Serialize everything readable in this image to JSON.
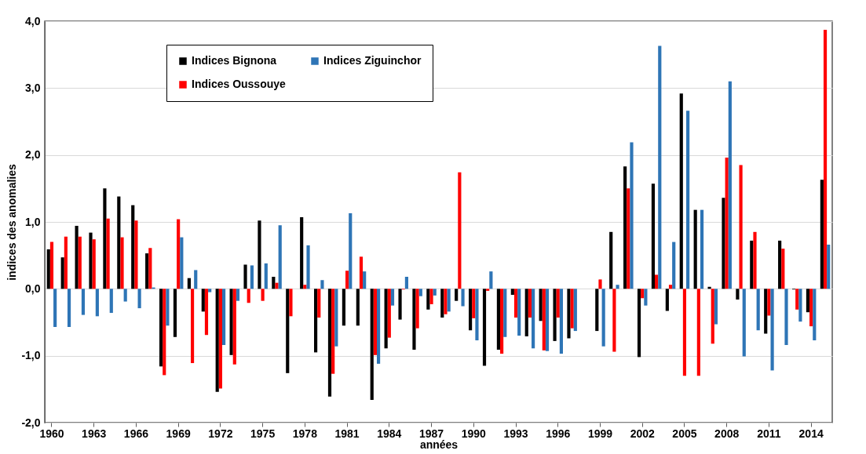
{
  "chart_data": {
    "type": "bar",
    "xlabel": "années",
    "ylabel": "indices des anomalies",
    "categories": [
      "1960",
      null,
      null,
      "1963",
      null,
      null,
      "1966",
      null,
      null,
      "1969",
      null,
      null,
      "1972",
      null,
      null,
      "1975",
      null,
      null,
      "1978",
      null,
      null,
      "1981",
      null,
      null,
      "1984",
      null,
      null,
      "1987",
      null,
      null,
      "1990",
      null,
      null,
      "1993",
      null,
      null,
      "1996",
      null,
      null,
      "1999",
      null,
      null,
      "2002",
      null,
      null,
      "2005",
      null,
      null,
      "2008",
      null,
      null,
      "2011",
      null,
      null,
      "2014",
      null
    ],
    "series": [
      {
        "name": "Indices Bignona",
        "color": "#000000",
        "values": [
          0.59,
          0.47,
          0.94,
          0.84,
          1.5,
          1.38,
          1.25,
          0.53,
          -1.16,
          -0.72,
          0.16,
          -0.34,
          -1.54,
          -0.99,
          0.36,
          1.02,
          0.18,
          -1.26,
          1.07,
          -0.95,
          -1.61,
          -0.55,
          -0.55,
          -1.66,
          -0.89,
          -0.46,
          -0.91,
          -0.31,
          -0.43,
          -0.18,
          -0.62,
          -1.15,
          -0.91,
          -0.09,
          -0.71,
          -0.48,
          -0.78,
          -0.74,
          null,
          -0.63,
          0.85,
          1.83,
          -1.02,
          1.57,
          -0.33,
          2.92,
          1.18,
          0.03,
          1.36,
          -0.16,
          0.72,
          -0.67,
          0.72,
          -0.01,
          -0.35,
          1.63
        ]
      },
      {
        "name": "Indices Oussouye",
        "color": "#ff0000",
        "values": [
          0.7,
          0.78,
          0.78,
          0.74,
          1.05,
          0.77,
          1.02,
          0.61,
          -1.29,
          1.04,
          -1.11,
          -0.69,
          -1.49,
          -1.13,
          -0.21,
          -0.18,
          0.09,
          -0.41,
          0.06,
          -0.43,
          -1.27,
          0.27,
          0.48,
          -0.99,
          -0.73,
          -0.01,
          -0.59,
          -0.23,
          -0.38,
          1.74,
          -0.44,
          -0.03,
          -0.97,
          -0.43,
          -0.43,
          -0.92,
          -0.43,
          -0.59,
          null,
          0.14,
          -0.94,
          1.5,
          -0.14,
          0.21,
          0.06,
          -1.3,
          -1.3,
          -0.82,
          1.96,
          1.85,
          0.85,
          -0.4,
          0.6,
          -0.31,
          -0.56,
          3.87
        ]
      },
      {
        "name": "Indices Ziguinchor",
        "color": "#2e75b6",
        "values": [
          -0.57,
          -0.57,
          -0.39,
          -0.41,
          -0.36,
          -0.19,
          -0.29,
          0.02,
          -0.55,
          0.77,
          0.28,
          -0.05,
          -0.84,
          -0.18,
          0.35,
          0.38,
          0.95,
          null,
          0.65,
          0.13,
          -0.86,
          1.13,
          0.26,
          -1.12,
          -0.25,
          0.18,
          -0.11,
          -0.1,
          -0.34,
          -0.26,
          -0.77,
          0.26,
          -0.72,
          -0.7,
          -0.89,
          -0.93,
          -0.97,
          -0.63,
          null,
          -0.86,
          0.06,
          2.19,
          -0.25,
          3.63,
          0.7,
          2.66,
          1.18,
          -0.53,
          3.1,
          -1.01,
          -0.62,
          -1.22,
          -0.84,
          -0.49,
          -0.77,
          0.66
        ]
      }
    ],
    "ylim": [
      -2,
      4
    ],
    "yticks": [
      {
        "value": -2,
        "label": "-2,0"
      },
      {
        "value": -1,
        "label": "-1,0"
      },
      {
        "value": 0,
        "label": "0,0"
      },
      {
        "value": 1,
        "label": "1,0"
      },
      {
        "value": 2,
        "label": "2,0"
      },
      {
        "value": 3,
        "label": "3,0"
      },
      {
        "value": 4,
        "label": "4,0"
      }
    ],
    "grid": "y",
    "legend": "top left"
  }
}
